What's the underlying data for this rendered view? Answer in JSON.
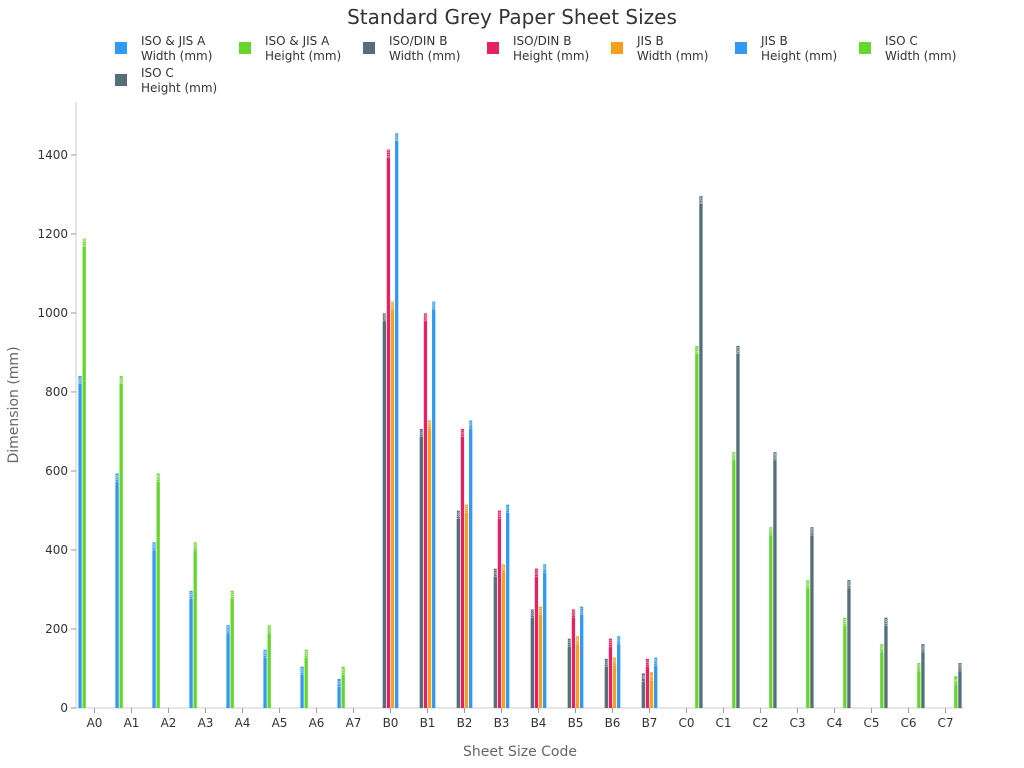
{
  "chart_data": {
    "type": "bar",
    "title": "Standard Grey Paper Sheet Sizes",
    "xlabel": "Sheet Size Code",
    "ylabel": "Dimension (mm)",
    "ylim": [
      0,
      1534
    ],
    "yticks": [
      0,
      200,
      400,
      600,
      800,
      1000,
      1200,
      1400
    ],
    "legend_position": "top",
    "categories": [
      "A0",
      "A1",
      "A2",
      "A3",
      "A4",
      "A5",
      "A6",
      "A7",
      "B0",
      "B1",
      "B2",
      "B3",
      "B4",
      "B5",
      "B6",
      "B7",
      "C0",
      "C1",
      "C2",
      "C3",
      "C4",
      "C5",
      "C6",
      "C7"
    ],
    "series": [
      {
        "name": "ISO & JIS A Width (mm)",
        "legend": [
          "ISO & JIS A",
          "Width (mm)"
        ],
        "color": "#3399f0",
        "values": [
          841,
          594,
          420,
          297,
          210,
          148,
          105,
          74,
          null,
          null,
          null,
          null,
          null,
          null,
          null,
          null,
          null,
          null,
          null,
          null,
          null,
          null,
          null,
          null
        ]
      },
      {
        "name": "ISO & JIS A Height (mm)",
        "legend": [
          "ISO & JIS A",
          "Height (mm)"
        ],
        "color": "#66d62e",
        "values": [
          1189,
          841,
          594,
          420,
          297,
          210,
          148,
          105,
          null,
          null,
          null,
          null,
          null,
          null,
          null,
          null,
          null,
          null,
          null,
          null,
          null,
          null,
          null,
          null
        ]
      },
      {
        "name": "ISO/DIN B Width (mm)",
        "legend": [
          "ISO/DIN B",
          "Width (mm)"
        ],
        "color": "#546e7a",
        "values": [
          null,
          null,
          null,
          null,
          null,
          null,
          null,
          null,
          1000,
          707,
          500,
          353,
          250,
          176,
          125,
          88,
          null,
          null,
          null,
          null,
          null,
          null,
          null,
          null
        ]
      },
      {
        "name": "ISO/DIN B Height (mm)",
        "legend": [
          "ISO/DIN B",
          "Height (mm)"
        ],
        "color": "#e62062",
        "values": [
          null,
          null,
          null,
          null,
          null,
          null,
          null,
          null,
          1414,
          1000,
          707,
          500,
          353,
          250,
          176,
          125,
          null,
          null,
          null,
          null,
          null,
          null,
          null,
          null
        ]
      },
      {
        "name": "JIS B Width (mm)",
        "legend": [
          "JIS B",
          "Width (mm)"
        ],
        "color": "#f5a020",
        "values": [
          null,
          null,
          null,
          null,
          null,
          null,
          null,
          null,
          1030,
          728,
          515,
          364,
          257,
          182,
          128,
          91,
          null,
          null,
          null,
          null,
          null,
          null,
          null,
          null
        ]
      },
      {
        "name": "JIS B Height (mm)",
        "legend": [
          "JIS B",
          "Height (mm)"
        ],
        "color": "#3399f0",
        "values": [
          null,
          null,
          null,
          null,
          null,
          null,
          null,
          null,
          1456,
          1030,
          728,
          515,
          364,
          257,
          182,
          128,
          null,
          null,
          null,
          null,
          null,
          null,
          null,
          null
        ]
      },
      {
        "name": "ISO C Width (mm)",
        "legend": [
          "ISO C",
          "Width (mm)"
        ],
        "color": "#66d62e",
        "values": [
          null,
          null,
          null,
          null,
          null,
          null,
          null,
          null,
          null,
          null,
          null,
          null,
          null,
          null,
          null,
          null,
          917,
          648,
          458,
          324,
          229,
          162,
          114,
          81
        ]
      },
      {
        "name": "ISO C Height (mm)",
        "legend": [
          "ISO C",
          "Height (mm)"
        ],
        "color": "#546e7a",
        "values": [
          null,
          null,
          null,
          null,
          null,
          null,
          null,
          null,
          null,
          null,
          null,
          null,
          null,
          null,
          null,
          null,
          1297,
          917,
          648,
          458,
          324,
          229,
          162,
          114
        ]
      }
    ]
  }
}
